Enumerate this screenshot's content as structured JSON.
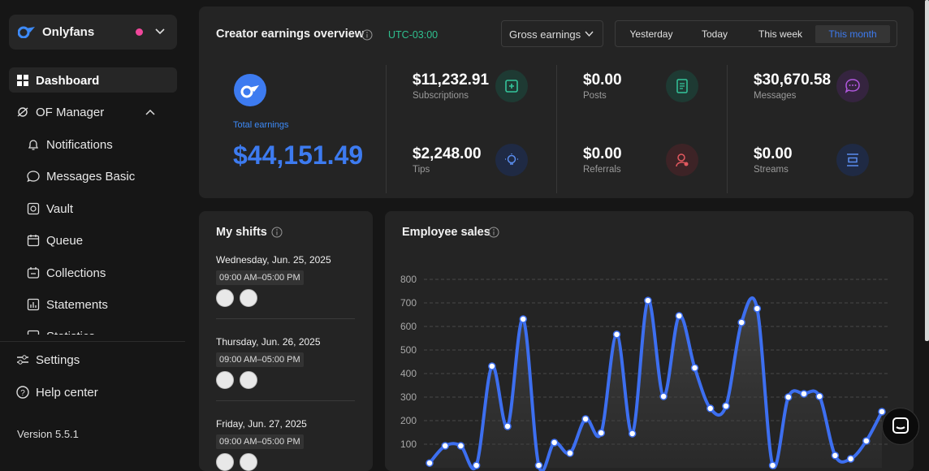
{
  "sidebar": {
    "brand": "Onlyfans",
    "nav": [
      "Dashboard",
      "OF Manager",
      "Notifications",
      "Messages Basic",
      "Vault",
      "Queue",
      "Collections",
      "Statements",
      "Statistics"
    ],
    "footer_nav": [
      "Settings",
      "Help center"
    ],
    "version": "Version 5.5.1"
  },
  "overview": {
    "title": "Creator earnings overview",
    "timezone": "UTC-03:00",
    "dropdown": "Gross earnings",
    "tabs": [
      "Yesterday",
      "Today",
      "This week",
      "This month"
    ],
    "active_tab": 3,
    "total": {
      "label": "Total earnings",
      "value": "$44,151.49"
    },
    "stats": [
      {
        "value": "$11,232.91",
        "label": "Subscriptions"
      },
      {
        "value": "$2,248.00",
        "label": "Tips"
      },
      {
        "value": "$0.00",
        "label": "Posts"
      },
      {
        "value": "$0.00",
        "label": "Referrals"
      },
      {
        "value": "$30,670.58",
        "label": "Messages"
      },
      {
        "value": "$0.00",
        "label": "Streams"
      }
    ]
  },
  "shifts": {
    "title": "My shifts",
    "days": [
      {
        "date": "Wednesday, Jun. 25, 2025",
        "time": "09:00 AM–05:00 PM"
      },
      {
        "date": "Thursday, Jun. 26, 2025",
        "time": "09:00 AM–05:00 PM"
      },
      {
        "date": "Friday, Jun. 27, 2025",
        "time": "09:00 AM–05:00 PM"
      }
    ]
  },
  "chart_data": {
    "type": "line",
    "title": "Employee sales",
    "series": [
      {
        "color": "#3d6ff0",
        "values": [
          20,
          93,
          93,
          10,
          431,
          176,
          631,
          10,
          107,
          62,
          207,
          148,
          566,
          145,
          710,
          303,
          645,
          424,
          252,
          262,
          617,
          676,
          10,
          300,
          314,
          303,
          52,
          38,
          114,
          238
        ]
      }
    ],
    "ylim": [
      0,
      800
    ],
    "yticks": [
      100,
      200,
      300,
      400,
      500,
      600,
      700,
      800
    ],
    "grid": true
  }
}
